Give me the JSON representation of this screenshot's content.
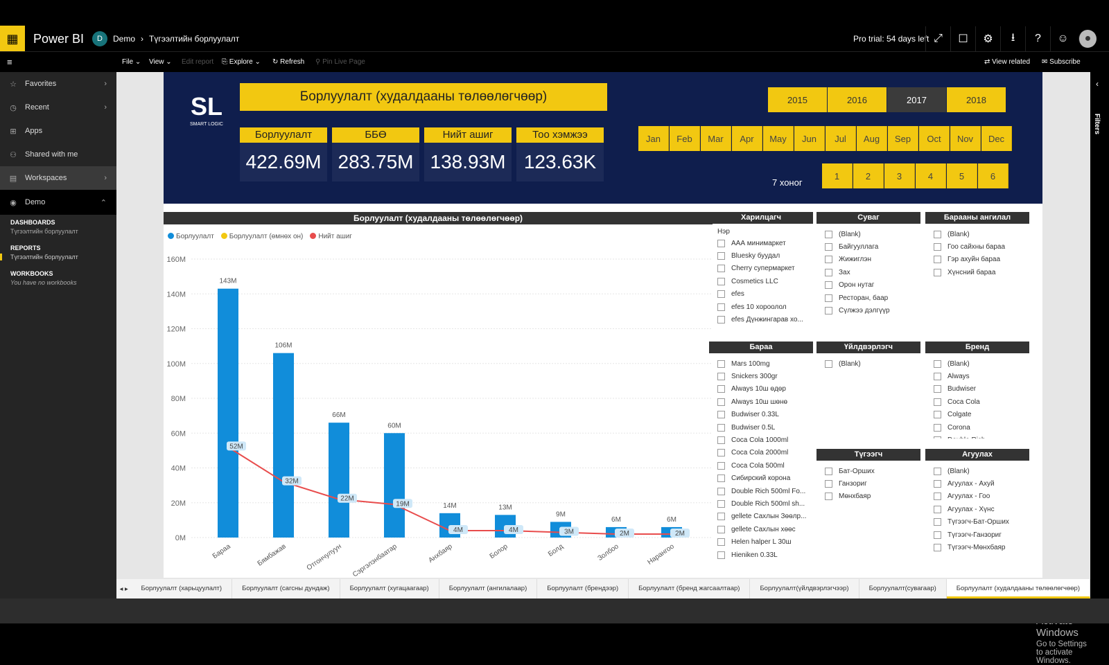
{
  "app": {
    "title": "Power BI",
    "workspace_initial": "D",
    "breadcrumb_workspace": "Demo",
    "breadcrumb_report": "Түгээлтийн борлуулалт",
    "trial": "Pro trial: 54 days left"
  },
  "commands": {
    "file": "File",
    "view": "View",
    "edit_report": "Edit report",
    "explore": "Explore",
    "refresh": "Refresh",
    "pin": "Pin Live Page",
    "view_related": "View related",
    "subscribe": "Subscribe"
  },
  "nav": {
    "favorites": "Favorites",
    "recent": "Recent",
    "apps": "Apps",
    "shared": "Shared with me",
    "workspaces": "Workspaces",
    "demo": "Demo",
    "dashboards": "DASHBOARDS",
    "dashboard_item": "Түгээлтийн борлуулалт",
    "reports": "REPORTS",
    "report_item": "Түгээлтийн борлуулалт",
    "workbooks": "WORKBOOKS",
    "no_workbooks": "You have no workbooks"
  },
  "banner": {
    "logo": "SL",
    "logo_sub": "SMART LOGIC",
    "title": "Борлуулалт (худалдааны төлөөлөгчөөр)",
    "kpis": [
      {
        "label": "Борлуулалт",
        "value": "422.69M"
      },
      {
        "label": "ББӨ",
        "value": "283.75M"
      },
      {
        "label": "Нийт ашиг",
        "value": "138.93M"
      },
      {
        "label": "Тоо хэмжээ",
        "value": "123.63K"
      }
    ],
    "years": [
      "2015",
      "2016",
      "2017",
      "2018"
    ],
    "selected_year": "2017",
    "months": [
      "Jan",
      "Feb",
      "Mar",
      "Apr",
      "May",
      "Jun",
      "Jul",
      "Aug",
      "Sep",
      "Oct",
      "Nov",
      "Dec"
    ],
    "week_label": "7 хоног",
    "weeks": [
      "1",
      "2",
      "3",
      "4",
      "5",
      "6"
    ]
  },
  "chart_title": "Борлуулалт (худалдааны төлөөлөгчөөр)",
  "legend": [
    {
      "name": "Борлуулалт",
      "color": "#118dda"
    },
    {
      "name": "Борлуулалт (өмнөх он)",
      "color": "#f2c811"
    },
    {
      "name": "Нийт ашиг",
      "color": "#e84c4c"
    }
  ],
  "chart_data": {
    "type": "bar",
    "categories": [
      "Бараа",
      "Бямбажав",
      "Отгончулуун",
      "Сэргэлэнбаатар",
      "Анхбаяр",
      "Болор",
      "Болд",
      "Золбоо",
      "Нарангоо"
    ],
    "series": [
      {
        "name": "Борлуулалт",
        "type": "bar",
        "values": [
          143,
          106,
          66,
          60,
          14,
          13,
          9,
          6,
          6
        ],
        "labels": [
          "143M",
          "106M",
          "66M",
          "60M",
          "14M",
          "13M",
          "9M",
          "6M",
          "6M"
        ]
      },
      {
        "name": "Нийт ашиг",
        "type": "line",
        "values": [
          52,
          32,
          22,
          19,
          4,
          4,
          3,
          2,
          2
        ],
        "labels": [
          "52M",
          "32M",
          "22M",
          "19M",
          "4M",
          "4M",
          "3M",
          "2M",
          "2M"
        ]
      }
    ],
    "ylim": [
      0,
      160
    ],
    "yticks": [
      "0M",
      "20M",
      "40M",
      "60M",
      "80M",
      "100M",
      "120M",
      "140M",
      "160M"
    ]
  },
  "slicers": {
    "customer": {
      "title": "Харилцагч",
      "subtitle": "Нэр",
      "items": [
        "ААА минимаркет",
        "Bluesky буудал",
        "Cherry супермаркет",
        "Cosmetics LLC",
        "efes",
        "efes 10 хороолол",
        "efes Дүнжингарав хо..."
      ]
    },
    "channel": {
      "title": "Суваг",
      "items": [
        "(Blank)",
        "Байгууллага",
        "Жижиглэн",
        "Зах",
        "Орон нутаг",
        "Ресторан, баар",
        "Сүлжээ дэлгүүр"
      ]
    },
    "category": {
      "title": "Барааны ангилал",
      "items": [
        "(Blank)",
        "Гоо сайхны бараа",
        "Гэр ахуйн бараа",
        "Хүнсний бараа"
      ]
    },
    "product": {
      "title": "Бараа",
      "items": [
        "Mars 100mg",
        "Snickers 300gr",
        "Always 10ш өдөр",
        "Always 10ш шөнө",
        "Budwiser 0.33L",
        "Budwiser 0.5L",
        "Coca Cola 1000ml",
        "Coca Cola 2000ml",
        "Coca Cola 500ml",
        "Сибирский корона",
        "Double Rich 500ml Fo...",
        "Double Rich 500ml sh...",
        "gellete Сахлын Зөөлр...",
        "gellete Сахлын хөөс",
        "Helen halper L 30ш",
        "Hieniken 0.33L"
      ]
    },
    "manufacturer": {
      "title": "Үйлдвэрлэгч",
      "items": [
        "(Blank)"
      ]
    },
    "brand": {
      "title": "Бренд",
      "items": [
        "(Blank)",
        "Always",
        "Budwiser",
        "Coca Cola",
        "Colgate",
        "Corona",
        "Double Rich"
      ]
    },
    "distributor": {
      "title": "Түгээгч",
      "items": [
        "Бат-Орших",
        "Ганзориг",
        "Мөнхбаяр"
      ]
    },
    "warehouse": {
      "title": "Агуулах",
      "items": [
        "(Blank)",
        "Агуулах - Ахуй",
        "Агуулах - Гоо",
        "Агуулах - Хүнс",
        "Түгээгч-Бат-Орших",
        "Түгээгч-Ганзориг",
        "Түгээгч-Мөнхбаяр"
      ]
    }
  },
  "tabs": [
    "Борлуулалт (харьцуулалт)",
    "Борлуулалт (сагсны дундаж)",
    "Борлуулалт (хугацаагаар)",
    "Борлуулалт (ангилалаар)",
    "Борлуулалт (брендээр)",
    "Борлуулалт (бренд жагсаалтаар)",
    "Борлуулалт(үйлдвэрлэгчээр)",
    "Борлуулалт(сувагаар)",
    "Борлуулалт (худалдааны төлөөлөгчөөр)"
  ],
  "active_tab": 8,
  "filters_label": "Filters",
  "watermark": {
    "title": "Activate Windows",
    "sub": "Go to Settings to activate Windows."
  }
}
